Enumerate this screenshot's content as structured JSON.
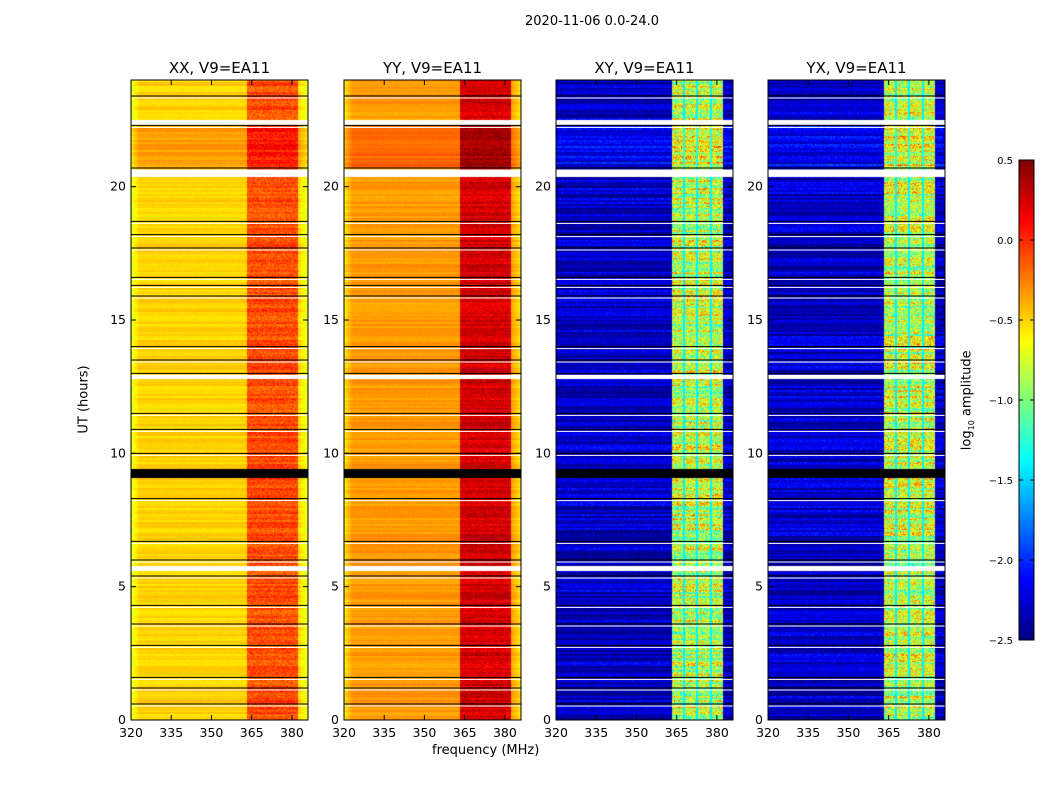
{
  "chart_data": {
    "type": "heatmap",
    "title": "2020-11-06 0.0-24.0",
    "xlabel": "frequency (MHz)",
    "ylabel": "UT (hours)",
    "xlim": [
      320,
      386
    ],
    "ylim": [
      0,
      24
    ],
    "xticks": [
      "320",
      "335",
      "350",
      "365",
      "380"
    ],
    "yticks": [
      "0",
      "5",
      "10",
      "15",
      "20"
    ],
    "panels": [
      {
        "title": "XX, V9=EA11",
        "baseline": -0.5,
        "band_level": -0.1,
        "edge_level": -0.7
      },
      {
        "title": "YY, V9=EA11",
        "baseline": -0.33,
        "band_level": 0.25,
        "edge_level": -0.55
      },
      {
        "title": "XY, V9=EA11",
        "baseline": -2.3,
        "band_level": -0.8,
        "edge_level": -2.3
      },
      {
        "title": "YX, V9=EA11",
        "baseline": -2.3,
        "band_level": -0.8,
        "edge_level": -2.3
      }
    ],
    "bright_band_mhz": [
      363,
      382
    ],
    "band_gaps_mhz": [
      367.5,
      372.5,
      377.5
    ],
    "flagged_hours": [
      [
        22.35,
        22.5
      ],
      [
        20.4,
        20.65
      ],
      [
        12.8,
        12.95
      ],
      [
        9.1,
        9.45
      ],
      [
        5.6,
        5.8
      ]
    ],
    "dark_line_hours": [
      23.4,
      22.3,
      20.7,
      18.7,
      18.2,
      17.7,
      16.6,
      16.3,
      15.9,
      14.0,
      13.5,
      13.0,
      11.5,
      10.9,
      10.0,
      8.3,
      6.7,
      6.0,
      5.4,
      4.3,
      3.6,
      2.8,
      1.6,
      1.2,
      0.6
    ],
    "colorbar": {
      "label": "log10 amplitude",
      "label_main": "log",
      "label_sub": "10",
      "label_rest": " amplitude",
      "range": [
        -2.5,
        0.5
      ],
      "ticks": [
        "0.5",
        "0.0",
        "−0.5",
        "−1.0",
        "−1.5",
        "−2.0",
        "−2.5"
      ],
      "colormap": "jet"
    }
  }
}
